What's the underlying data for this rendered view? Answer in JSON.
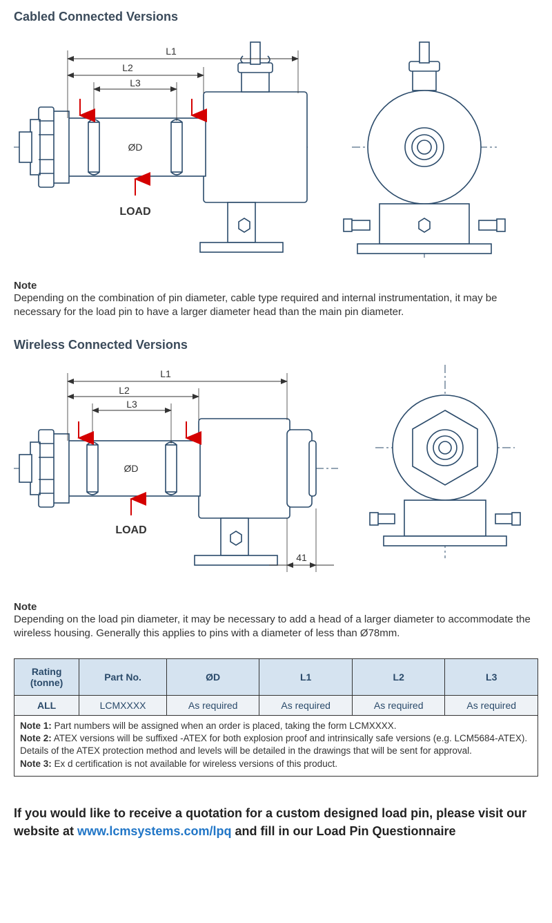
{
  "cabled": {
    "title": "Cabled Connected Versions",
    "note_head": "Note",
    "note_body": "Depending on the combination of pin diameter, cable type required and internal instrumentation, it may be necessary for the load pin to have a larger diameter head than the main pin diameter.",
    "labels": {
      "L1": "L1",
      "L2": "L2",
      "L3": "L3",
      "OD": "ØD",
      "LOAD": "LOAD"
    }
  },
  "wireless": {
    "title": "Wireless Connected Versions",
    "note_head": "Note",
    "note_body": "Depending on the load pin diameter, it may be necessary to add a head of a larger diameter to accommodate the wireless housing. Generally this applies to pins with a diameter of less than Ø78mm.",
    "labels": {
      "L1": "L1",
      "L2": "L2",
      "L3": "L3",
      "OD": "ØD",
      "LOAD": "LOAD",
      "dim41": "41"
    }
  },
  "table": {
    "headers": [
      "Rating\n(tonne)",
      "Part No.",
      "ØD",
      "L1",
      "L2",
      "L3"
    ],
    "row": [
      "ALL",
      "LCMXXXX",
      "As required",
      "As required",
      "As required",
      "As required"
    ]
  },
  "notes": {
    "n1_label": "Note 1:",
    "n1": " Part numbers will be assigned when an order is placed, taking the form LCMXXXX.",
    "n2_label": "Note 2:",
    "n2": " ATEX versions will be suffixed -ATEX for both explosion proof and intrinsically safe versions (e.g. LCM5684-ATEX). Details of the ATEX protection method and levels will be detailed in the drawings that will be sent for approval.",
    "n3_label": "Note 3:",
    "n3": " Ex d certification is not available for wireless versions of this product."
  },
  "cta": {
    "pre": "If you would like to receive a quotation for a custom designed load pin, please visit our website at ",
    "link": "www.lcmsystems.com/lpq",
    "post": " and fill in our Load Pin Questionnaire"
  },
  "style": {
    "stroke": "#2a4a6a",
    "stroke_width": 1.6,
    "arrow_fill": "#d40000",
    "dim_color": "#333"
  }
}
